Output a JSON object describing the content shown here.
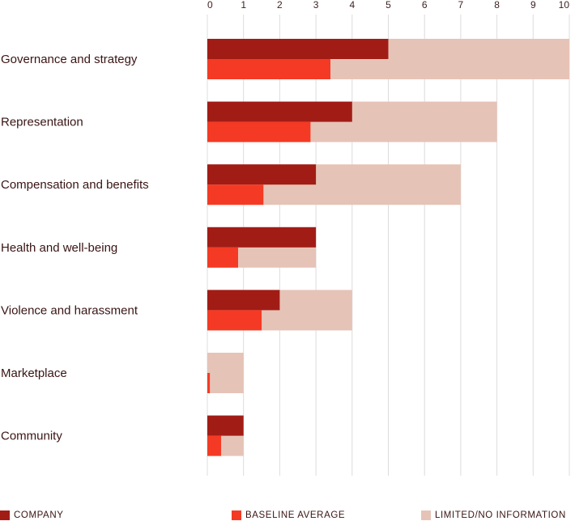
{
  "chart_data": {
    "type": "bar",
    "orientation": "horizontal",
    "xlim": [
      0,
      10
    ],
    "ticks": [
      "0",
      "1",
      "2",
      "3",
      "4",
      "5",
      "6",
      "7",
      "8",
      "9",
      "10"
    ],
    "grid": true,
    "categories": [
      "Governance and strategy",
      "Representation",
      "Compensation and benefits",
      "Health and well-being",
      "Violence and harassment",
      "Marketplace",
      "Community"
    ],
    "series": [
      {
        "name": "COMPANY",
        "color": "#a21c16",
        "values": [
          5,
          4,
          3,
          3,
          2,
          0,
          1
        ]
      },
      {
        "name": "BASELINE AVERAGE",
        "color": "#f43a24",
        "values": [
          3.4,
          2.85,
          1.55,
          0.85,
          1.5,
          0.07,
          0.38
        ]
      },
      {
        "name": "LIMITED/NO INFORMATION",
        "color": "#e6c3b7",
        "values": [
          10,
          8,
          7,
          3,
          4,
          1,
          1
        ]
      }
    ],
    "legend_position": "bottom"
  }
}
